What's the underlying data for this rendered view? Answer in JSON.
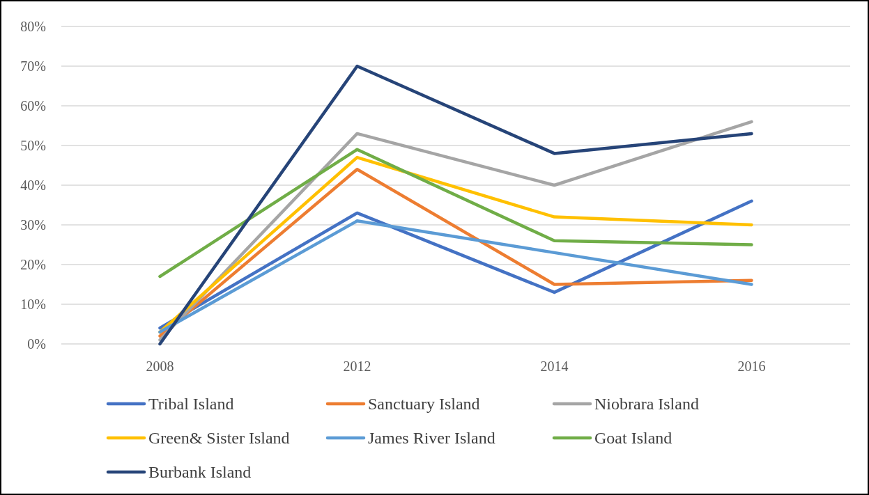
{
  "chart_data": {
    "type": "line",
    "categories": [
      "2008",
      "2012",
      "2014",
      "2016"
    ],
    "series": [
      {
        "name": "Tribal Island",
        "color": "#4472c4",
        "values": [
          4,
          33,
          13,
          36
        ]
      },
      {
        "name": "Sanctuary Island",
        "color": "#ed7d31",
        "values": [
          2,
          44,
          15,
          16
        ]
      },
      {
        "name": "Niobrara Island",
        "color": "#a5a5a5",
        "values": [
          1,
          53,
          40,
          56
        ]
      },
      {
        "name": "Green& Sister Island",
        "color": "#ffc000",
        "values": [
          3,
          47,
          32,
          30
        ]
      },
      {
        "name": "James River Island",
        "color": "#5b9bd5",
        "values": [
          3,
          31,
          23,
          15
        ]
      },
      {
        "name": "Goat Island",
        "color": "#70ad47",
        "values": [
          17,
          49,
          26,
          25
        ]
      },
      {
        "name": "Burbank Island",
        "color": "#264478",
        "values": [
          0,
          70,
          48,
          53
        ]
      }
    ],
    "ylim": [
      0,
      80
    ],
    "yticks": [
      {
        "value": 0,
        "label": "0%"
      },
      {
        "value": 10,
        "label": "10%"
      },
      {
        "value": 20,
        "label": "20%"
      },
      {
        "value": 30,
        "label": "30%"
      },
      {
        "value": 40,
        "label": "40%"
      },
      {
        "value": 50,
        "label": "50%"
      },
      {
        "value": 60,
        "label": "60%"
      },
      {
        "value": 70,
        "label": "70%"
      },
      {
        "value": 80,
        "label": "80%"
      }
    ],
    "grid": "y",
    "legend": "bottom",
    "marker": "none",
    "line_style": "solid"
  }
}
